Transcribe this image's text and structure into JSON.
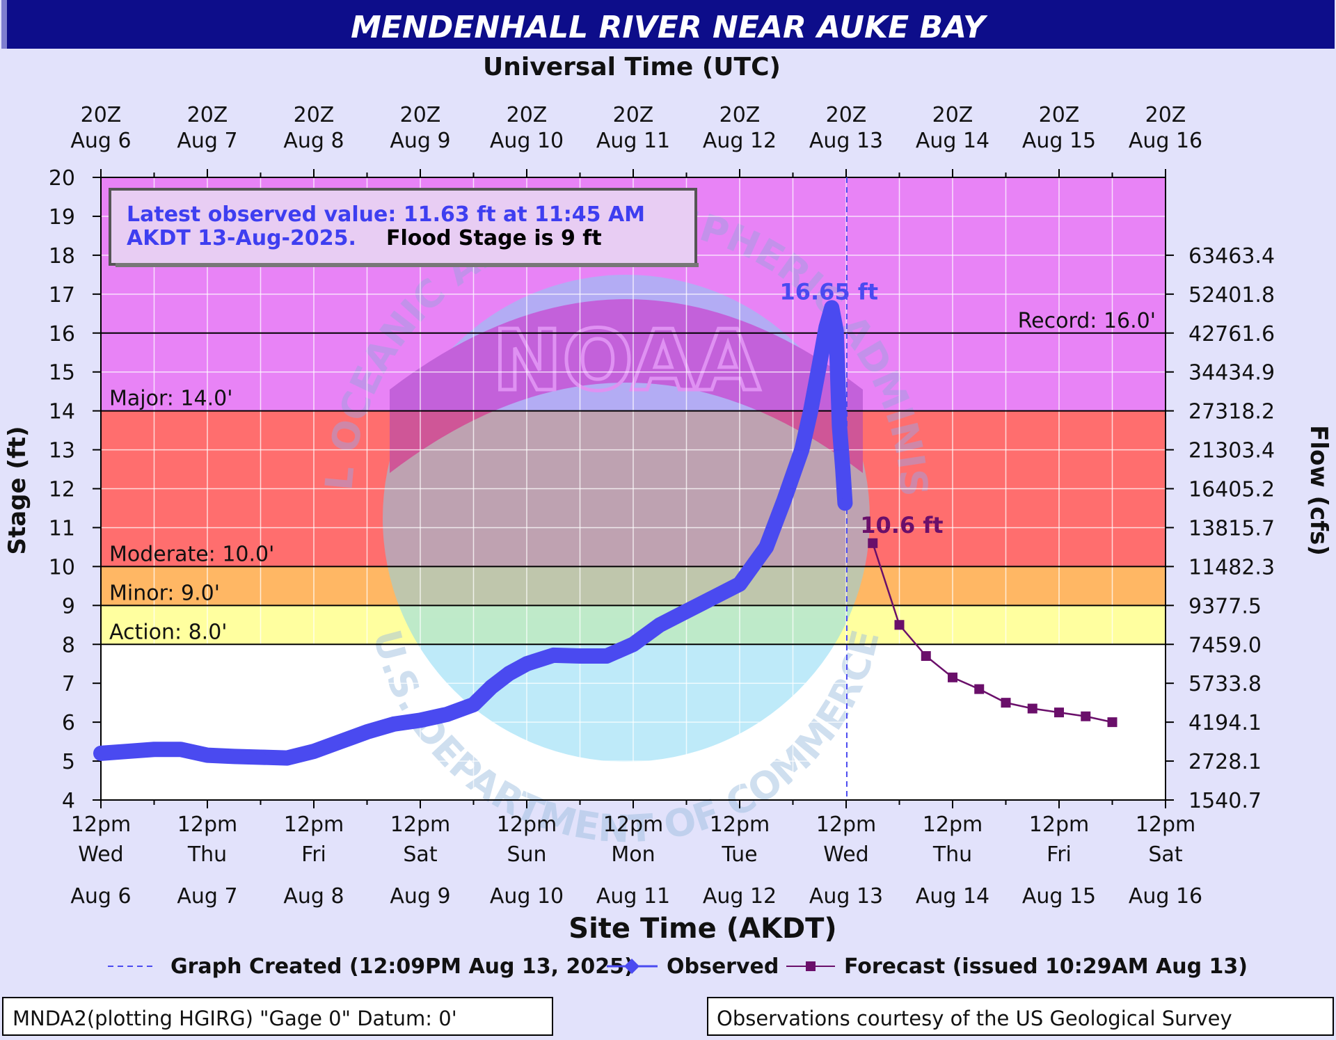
{
  "chart_data": {
    "type": "line",
    "title": "MENDENHALL RIVER NEAR AUKE BAY",
    "top_axis_title": "Universal Time (UTC)",
    "top_axis_labels": [
      [
        "20Z",
        "Aug  6"
      ],
      [
        "20Z",
        "Aug  7"
      ],
      [
        "20Z",
        "Aug  8"
      ],
      [
        "20Z",
        "Aug  9"
      ],
      [
        "20Z",
        "Aug 10"
      ],
      [
        "20Z",
        "Aug 11"
      ],
      [
        "20Z",
        "Aug 12"
      ],
      [
        "20Z",
        "Aug 13"
      ],
      [
        "20Z",
        "Aug 14"
      ],
      [
        "20Z",
        "Aug 15"
      ],
      [
        "20Z",
        "Aug 16"
      ]
    ],
    "xlabel": "Site Time (AKDT)",
    "x_tick_labels": [
      [
        "12pm",
        "Wed",
        "Aug 6"
      ],
      [
        "12pm",
        "Thu",
        "Aug 7"
      ],
      [
        "12pm",
        "Fri",
        "Aug 8"
      ],
      [
        "12pm",
        "Sat",
        "Aug 9"
      ],
      [
        "12pm",
        "Sun",
        "Aug 10"
      ],
      [
        "12pm",
        "Mon",
        "Aug 11"
      ],
      [
        "12pm",
        "Tue",
        "Aug 12"
      ],
      [
        "12pm",
        "Wed",
        "Aug 13"
      ],
      [
        "12pm",
        "Thu",
        "Aug 14"
      ],
      [
        "12pm",
        "Fri",
        "Aug 15"
      ],
      [
        "12pm",
        "Sat",
        "Aug 16"
      ]
    ],
    "xlim": [
      "2025-08-06 12:00",
      "2025-08-16 12:00"
    ],
    "ylabel": "Stage (ft)",
    "ylim": [
      4,
      20
    ],
    "y_ticks": [
      "4",
      "5",
      "6",
      "7",
      "8",
      "9",
      "10",
      "11",
      "12",
      "13",
      "14",
      "15",
      "16",
      "17",
      "18",
      "19",
      "20"
    ],
    "y2label": "Flow (cfs)",
    "y2_ticks": [
      {
        "stage": 4,
        "label": "1540.7"
      },
      {
        "stage": 5,
        "label": "2728.1"
      },
      {
        "stage": 6,
        "label": "4194.1"
      },
      {
        "stage": 7,
        "label": "5733.8"
      },
      {
        "stage": 8,
        "label": "7459.0"
      },
      {
        "stage": 9,
        "label": "9377.5"
      },
      {
        "stage": 10,
        "label": "11482.3"
      },
      {
        "stage": 11,
        "label": "13815.7"
      },
      {
        "stage": 12,
        "label": "16405.2"
      },
      {
        "stage": 13,
        "label": "21303.4"
      },
      {
        "stage": 14,
        "label": "27318.2"
      },
      {
        "stage": 15,
        "label": "34434.9"
      },
      {
        "stage": 16,
        "label": "42761.6"
      },
      {
        "stage": 17,
        "label": "52401.8"
      },
      {
        "stage": 18,
        "label": "63463.4"
      }
    ],
    "grid": true,
    "flood_categories": [
      {
        "name": "Action",
        "label": "Action: 8.0'",
        "from": 8,
        "to": 9,
        "color": "#ffff9f"
      },
      {
        "name": "Minor",
        "label": "Minor: 9.0'",
        "from": 9,
        "to": 10,
        "color": "#ffb764"
      },
      {
        "name": "Moderate",
        "label": "Moderate: 10.0'",
        "from": 10,
        "to": 14,
        "color": "#ff6e6e"
      },
      {
        "name": "Major",
        "label": "Major: 14.0'",
        "from": 14,
        "to": 20,
        "color": "#e883f6"
      }
    ],
    "record": {
      "label": "Record: 16.0'",
      "value": 16.0
    },
    "graph_created": "2025-08-13 12:09",
    "series": [
      {
        "name": "Observed",
        "color": "#4a4af0",
        "points": [
          [
            "2025-08-06 12:00",
            5.2
          ],
          [
            "2025-08-06 18:00",
            5.25
          ],
          [
            "2025-08-07 00:00",
            5.3
          ],
          [
            "2025-08-07 06:00",
            5.3
          ],
          [
            "2025-08-07 12:00",
            5.15
          ],
          [
            "2025-08-07 18:00",
            5.12
          ],
          [
            "2025-08-08 00:00",
            5.1
          ],
          [
            "2025-08-08 06:00",
            5.08
          ],
          [
            "2025-08-08 12:00",
            5.25
          ],
          [
            "2025-08-08 18:00",
            5.5
          ],
          [
            "2025-08-09 00:00",
            5.75
          ],
          [
            "2025-08-09 06:00",
            5.95
          ],
          [
            "2025-08-09 12:00",
            6.05
          ],
          [
            "2025-08-09 18:00",
            6.2
          ],
          [
            "2025-08-10 00:00",
            6.45
          ],
          [
            "2025-08-10 04:00",
            6.9
          ],
          [
            "2025-08-10 08:00",
            7.25
          ],
          [
            "2025-08-10 12:00",
            7.5
          ],
          [
            "2025-08-10 18:00",
            7.72
          ],
          [
            "2025-08-11 00:00",
            7.7
          ],
          [
            "2025-08-11 06:00",
            7.7
          ],
          [
            "2025-08-11 12:00",
            8.0
          ],
          [
            "2025-08-11 18:00",
            8.5
          ],
          [
            "2025-08-12 00:00",
            8.85
          ],
          [
            "2025-08-12 06:00",
            9.2
          ],
          [
            "2025-08-12 12:00",
            9.55
          ],
          [
            "2025-08-12 18:00",
            10.5
          ],
          [
            "2025-08-12 22:00",
            11.7
          ],
          [
            "2025-08-13 02:00",
            13.0
          ],
          [
            "2025-08-13 04:00",
            14.0
          ],
          [
            "2025-08-13 06:00",
            15.2
          ],
          [
            "2025-08-13 07:30",
            16.15
          ],
          [
            "2025-08-13 08:45",
            16.65
          ],
          [
            "2025-08-13 09:45",
            16.05
          ],
          [
            "2025-08-13 10:30",
            13.6
          ],
          [
            "2025-08-13 11:15",
            12.5
          ],
          [
            "2025-08-13 11:45",
            11.63
          ]
        ]
      },
      {
        "name": "Forecast",
        "color": "#6a0f6a",
        "points": [
          [
            "2025-08-13 18:00",
            10.6
          ],
          [
            "2025-08-14 00:00",
            8.5
          ],
          [
            "2025-08-14 06:00",
            7.7
          ],
          [
            "2025-08-14 12:00",
            7.15
          ],
          [
            "2025-08-14 18:00",
            6.85
          ],
          [
            "2025-08-15 00:00",
            6.5
          ],
          [
            "2025-08-15 06:00",
            6.35
          ],
          [
            "2025-08-15 12:00",
            6.25
          ],
          [
            "2025-08-15 18:00",
            6.15
          ],
          [
            "2025-08-16 00:00",
            6.0
          ]
        ]
      }
    ],
    "annotations": {
      "peak_label": "16.65 ft",
      "forecast_label": "10.6 ft",
      "latest_observed": "Latest observed value: 11.63 ft at 11:45 AM AKDT 13-Aug-2025.",
      "latest_observed_line1": "Latest observed value: 11.63 ft at 11:45 AM",
      "latest_observed_line2": "AKDT 13-Aug-2025.",
      "flood_stage_text": "Flood Stage is 9 ft"
    },
    "legend": {
      "placement": "bottom",
      "graph_created": "Graph Created (12:09PM Aug 13, 2025)",
      "observed": "Observed",
      "forecast": "Forecast (issued 10:29AM Aug 13)"
    },
    "watermark": {
      "top": "NATIONAL OCEANIC AND ATMOSPHERIC ADMINISTRATION",
      "center": "NOAA",
      "bottom": "U.S. DEPARTMENT OF COMMERCE"
    },
    "footer_left": "MNDA2(plotting HGIRG) \"Gage 0\" Datum: 0'",
    "footer_right": "Observations courtesy of the US Geological Survey"
  }
}
